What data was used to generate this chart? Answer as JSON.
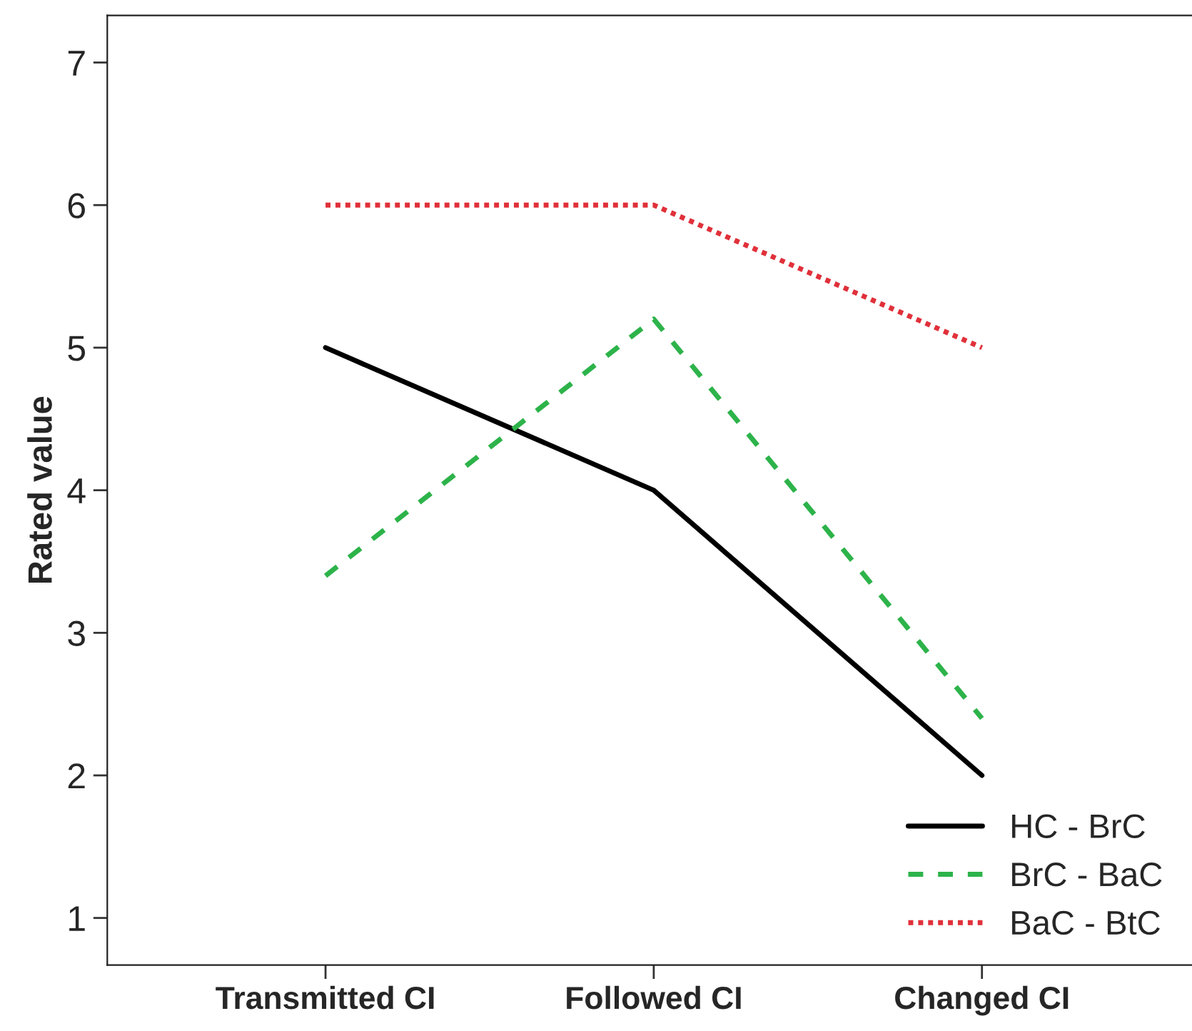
{
  "chart_data": {
    "type": "line",
    "ylabel": "Rated value",
    "categories": [
      "Transmitted CI",
      "Followed CI",
      "Changed CI"
    ],
    "series": [
      {
        "name": "HC - BrC",
        "color": "#000000",
        "values": [
          5,
          4,
          2
        ],
        "line_style": "solid"
      },
      {
        "name": "BrC - BaC",
        "color": "#2db34a",
        "values": [
          3.4,
          5.2,
          2.4
        ],
        "line_style": "dashed"
      },
      {
        "name": "BaC - BtC",
        "color": "#e0303a",
        "values": [
          6,
          6,
          5
        ],
        "line_style": "dotted"
      }
    ],
    "ylim": [
      0.67,
      7.33
    ],
    "yticks": [
      1,
      2,
      3,
      4,
      5,
      6,
      7
    ],
    "grid": false,
    "legend": "bottom right",
    "marker": "none"
  }
}
